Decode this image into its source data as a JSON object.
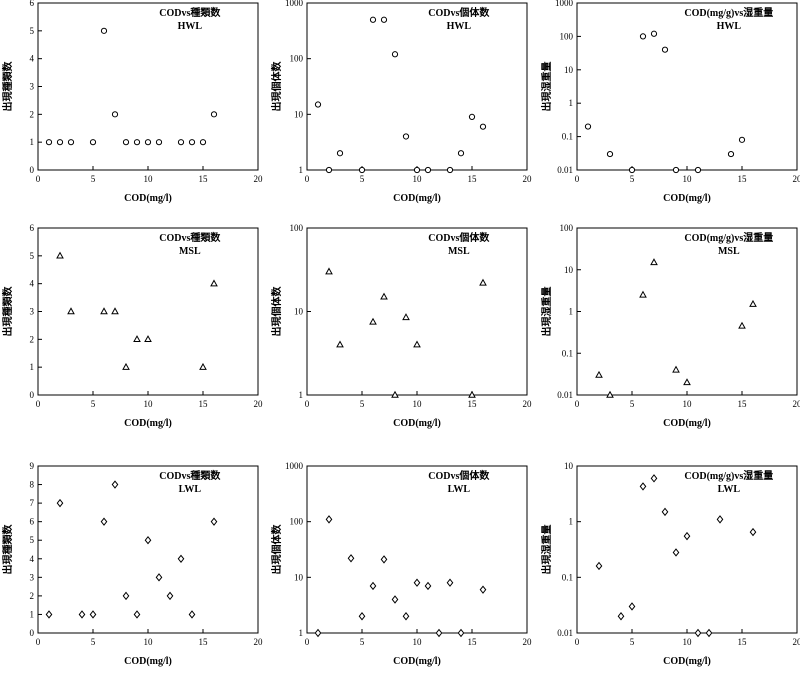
{
  "chart_data": [
    {
      "type": "scatter",
      "marker": "circle",
      "scale": "linear",
      "title": "CODvs種類数",
      "subtitle": "HWL",
      "xlabel": "COD(mg/l)",
      "ylabel": "出現種類数",
      "xlim": [
        0,
        20
      ],
      "ylim": [
        0,
        6
      ],
      "xticks": [
        0,
        5,
        10,
        15,
        20
      ],
      "yticks": [
        0,
        1,
        2,
        3,
        4,
        5,
        6
      ],
      "ytick_labels": [
        "0",
        "1",
        "2",
        "3",
        "4",
        "5",
        "6"
      ],
      "points": [
        [
          1,
          1
        ],
        [
          2,
          1
        ],
        [
          3,
          1
        ],
        [
          5,
          1
        ],
        [
          6,
          5
        ],
        [
          7,
          2
        ],
        [
          8,
          1
        ],
        [
          9,
          1
        ],
        [
          10,
          1
        ],
        [
          11,
          1
        ],
        [
          13,
          1
        ],
        [
          14,
          1
        ],
        [
          15,
          1
        ],
        [
          16,
          2
        ]
      ]
    },
    {
      "type": "scatter",
      "marker": "circle",
      "scale": "log",
      "title": "CODvs個体数",
      "subtitle": "HWL",
      "xlabel": "COD(mg/l)",
      "ylabel": "出現個体数",
      "xlim": [
        0,
        20
      ],
      "ylim": [
        1,
        1000
      ],
      "xticks": [
        0,
        5,
        10,
        15,
        20
      ],
      "yticks": [
        1,
        10,
        100,
        1000
      ],
      "ytick_labels": [
        "1",
        "10",
        "100",
        "1000"
      ],
      "points": [
        [
          1,
          15
        ],
        [
          2,
          1
        ],
        [
          3,
          2
        ],
        [
          5,
          1
        ],
        [
          6,
          500
        ],
        [
          7,
          500
        ],
        [
          8,
          120
        ],
        [
          9,
          4
        ],
        [
          10,
          1
        ],
        [
          11,
          1
        ],
        [
          13,
          1
        ],
        [
          14,
          2
        ],
        [
          15,
          9
        ],
        [
          16,
          6
        ]
      ]
    },
    {
      "type": "scatter",
      "marker": "circle",
      "scale": "log",
      "title": "COD(mg/g)vs湿重量",
      "subtitle": "HWL",
      "xlabel": "COD(mg/l)",
      "ylabel": "出現湿重量",
      "xlim": [
        0,
        20
      ],
      "ylim": [
        0.01,
        1000
      ],
      "xticks": [
        0,
        5,
        10,
        15,
        20
      ],
      "yticks": [
        0.01,
        0.1,
        1,
        10,
        100,
        1000
      ],
      "ytick_labels": [
        "0.01",
        "0.1",
        "1",
        "10",
        "100",
        "1000"
      ],
      "points": [
        [
          1,
          0.2
        ],
        [
          3,
          0.03
        ],
        [
          5,
          0.01
        ],
        [
          6,
          100
        ],
        [
          7,
          120
        ],
        [
          8,
          40
        ],
        [
          9,
          0.01
        ],
        [
          11,
          0.01
        ],
        [
          14,
          0.03
        ],
        [
          15,
          0.08
        ]
      ]
    },
    {
      "type": "scatter",
      "marker": "triangle",
      "scale": "linear",
      "title": "CODvs種類数",
      "subtitle": "MSL",
      "xlabel": "COD(mg/l)",
      "ylabel": "出現種類数",
      "xlim": [
        0,
        20
      ],
      "ylim": [
        0,
        6
      ],
      "xticks": [
        0,
        5,
        10,
        15,
        20
      ],
      "yticks": [
        0,
        1,
        2,
        3,
        4,
        5,
        6
      ],
      "ytick_labels": [
        "0",
        "1",
        "2",
        "3",
        "4",
        "5",
        "6"
      ],
      "points": [
        [
          2,
          5
        ],
        [
          3,
          3
        ],
        [
          6,
          3
        ],
        [
          7,
          3
        ],
        [
          8,
          1
        ],
        [
          9,
          2
        ],
        [
          10,
          2
        ],
        [
          15,
          1
        ],
        [
          16,
          4
        ]
      ]
    },
    {
      "type": "scatter",
      "marker": "triangle",
      "scale": "log",
      "title": "CODvs個体数",
      "subtitle": "MSL",
      "xlabel": "COD(mg/l)",
      "ylabel": "出現個体数",
      "xlim": [
        0,
        20
      ],
      "ylim": [
        1,
        100
      ],
      "xticks": [
        0,
        5,
        10,
        15,
        20
      ],
      "yticks": [
        1,
        10,
        100
      ],
      "ytick_labels": [
        "1",
        "10",
        "100"
      ],
      "points": [
        [
          2,
          30
        ],
        [
          3,
          4
        ],
        [
          6,
          7.5
        ],
        [
          7,
          15
        ],
        [
          8,
          1
        ],
        [
          9,
          8.5
        ],
        [
          10,
          4
        ],
        [
          15,
          1
        ],
        [
          16,
          22
        ]
      ]
    },
    {
      "type": "scatter",
      "marker": "triangle",
      "scale": "log",
      "title": "COD(mg/g)vs湿重量",
      "subtitle": "MSL",
      "xlabel": "COD(mg/l)",
      "ylabel": "出現湿重量",
      "xlim": [
        0,
        20
      ],
      "ylim": [
        0.01,
        100
      ],
      "xticks": [
        0,
        5,
        10,
        15,
        20
      ],
      "yticks": [
        0.01,
        0.1,
        1,
        10,
        100
      ],
      "ytick_labels": [
        "0.01",
        "0.1",
        "1",
        "10",
        "100"
      ],
      "points": [
        [
          2,
          0.03
        ],
        [
          3,
          0.01
        ],
        [
          6,
          2.5
        ],
        [
          7,
          15
        ],
        [
          9,
          0.04
        ],
        [
          10,
          0.02
        ],
        [
          15,
          0.45
        ],
        [
          16,
          1.5
        ]
      ]
    },
    {
      "type": "scatter",
      "marker": "diamond",
      "scale": "linear",
      "title": "CODvs種類数",
      "subtitle": "LWL",
      "xlabel": "COD(mg/l)",
      "ylabel": "出現種類数",
      "xlim": [
        0,
        20
      ],
      "ylim": [
        0,
        9
      ],
      "xticks": [
        0,
        5,
        10,
        15,
        20
      ],
      "yticks": [
        0,
        1,
        2,
        3,
        4,
        5,
        6,
        7,
        8,
        9
      ],
      "ytick_labels": [
        "0",
        "1",
        "2",
        "3",
        "4",
        "5",
        "6",
        "7",
        "8",
        "9"
      ],
      "points": [
        [
          1,
          1
        ],
        [
          2,
          7
        ],
        [
          4,
          1
        ],
        [
          5,
          1
        ],
        [
          6,
          6
        ],
        [
          7,
          8
        ],
        [
          8,
          2
        ],
        [
          9,
          1
        ],
        [
          10,
          5
        ],
        [
          11,
          3
        ],
        [
          12,
          2
        ],
        [
          13,
          4
        ],
        [
          14,
          1
        ],
        [
          16,
          6
        ]
      ]
    },
    {
      "type": "scatter",
      "marker": "diamond",
      "scale": "log",
      "title": "CODvs個体数",
      "subtitle": "LWL",
      "xlabel": "COD(mg/l)",
      "ylabel": "出現個体数",
      "xlim": [
        0,
        20
      ],
      "ylim": [
        1,
        1000
      ],
      "xticks": [
        0,
        5,
        10,
        15,
        20
      ],
      "yticks": [
        1,
        10,
        100,
        1000
      ],
      "ytick_labels": [
        "1",
        "10",
        "100",
        "1000"
      ],
      "points": [
        [
          1,
          1
        ],
        [
          2,
          110
        ],
        [
          4,
          22
        ],
        [
          5,
          2
        ],
        [
          6,
          7
        ],
        [
          7,
          21
        ],
        [
          8,
          4
        ],
        [
          9,
          2
        ],
        [
          10,
          8
        ],
        [
          11,
          7
        ],
        [
          12,
          1
        ],
        [
          13,
          8
        ],
        [
          14,
          1
        ],
        [
          16,
          6
        ]
      ]
    },
    {
      "type": "scatter",
      "marker": "diamond",
      "scale": "log",
      "title": "COD(mg/g)vs湿重量",
      "subtitle": "LWL",
      "xlabel": "COD(mg/l)",
      "ylabel": "出現湿重量",
      "xlim": [
        0,
        20
      ],
      "ylim": [
        0.01,
        10
      ],
      "xticks": [
        0,
        5,
        10,
        15,
        20
      ],
      "yticks": [
        0.01,
        0.1,
        1,
        10
      ],
      "ytick_labels": [
        "0.01",
        "0.1",
        "1",
        "10"
      ],
      "points": [
        [
          2,
          0.16
        ],
        [
          4,
          0.02
        ],
        [
          5,
          0.03
        ],
        [
          6,
          4.3
        ],
        [
          7,
          6
        ],
        [
          8,
          1.5
        ],
        [
          9,
          0.28
        ],
        [
          10,
          0.55
        ],
        [
          11,
          0.01
        ],
        [
          12,
          0.01
        ],
        [
          13,
          1.1
        ],
        [
          16,
          0.65
        ]
      ]
    }
  ]
}
